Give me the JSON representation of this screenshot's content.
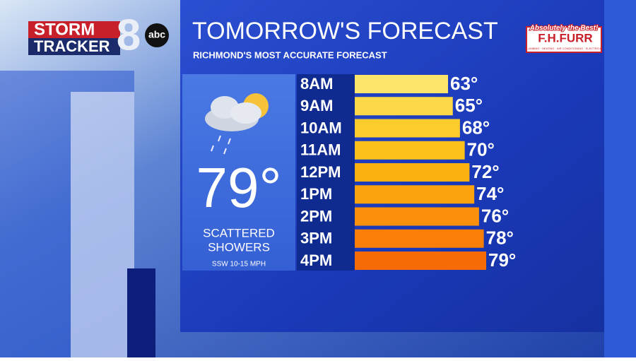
{
  "branding": {
    "storm": "STORM",
    "tracker": "TRACKER",
    "channel": "8",
    "network": "abc"
  },
  "sponsor": {
    "tagline": "Absolutely the Best!",
    "name": "F.H.FURR",
    "services": "PLUMBING · HEATING · AIR CONDITIONING · ELECTRICAL"
  },
  "current": {
    "temperature": "79°",
    "condition": [
      "SCATTERED",
      "SHOWERS"
    ],
    "wind": "SSW 10-15 MPH"
  },
  "chart_data": {
    "type": "hbar",
    "title": "TOMORROW'S FORECAST",
    "subtitle": "RICHMOND'S MOST ACCURATE FORECAST",
    "categories": [
      "8AM",
      "9AM",
      "10AM",
      "11AM",
      "12PM",
      "1PM",
      "2PM",
      "3PM",
      "4PM"
    ],
    "values": [
      63,
      65,
      68,
      70,
      72,
      74,
      76,
      78,
      79
    ],
    "value_labels": [
      "63°",
      "65°",
      "68°",
      "70°",
      "72°",
      "74°",
      "76°",
      "78°",
      "79°"
    ],
    "colors": [
      "#fde46a",
      "#fdd94a",
      "#fccb2c",
      "#fcc21c",
      "#fbb20f",
      "#fba20e",
      "#fa900b",
      "#f97f09",
      "#f76b06"
    ]
  }
}
